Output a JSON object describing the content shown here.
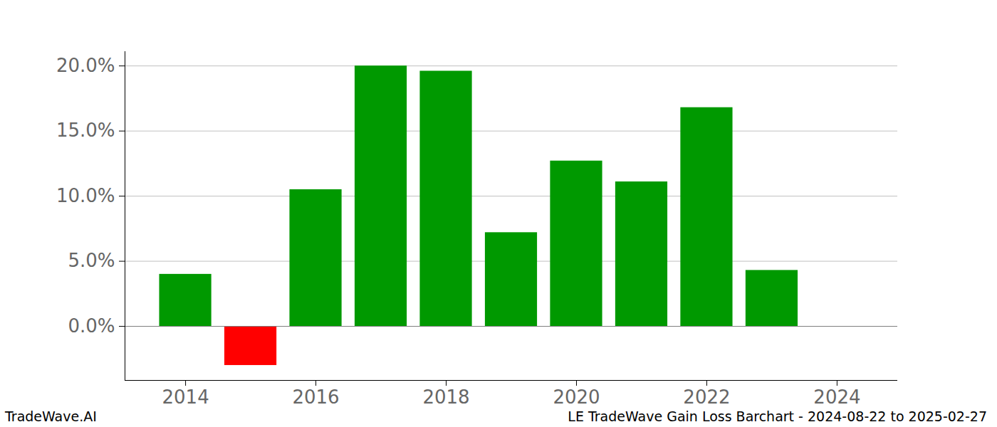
{
  "chart_data": {
    "type": "bar",
    "title": "LE TradeWave Gain Loss Barchart - 2024-08-22 to 2025-02-27",
    "caption": "TradeWave.AI",
    "x": [
      2014,
      2015,
      2016,
      2017,
      2018,
      2019,
      2020,
      2021,
      2022,
      2023
    ],
    "values": [
      4.0,
      -3.0,
      10.5,
      20.0,
      19.6,
      7.2,
      12.7,
      11.1,
      16.8,
      4.3
    ],
    "colors": [
      "#009900",
      "#ff0000",
      "#009900",
      "#009900",
      "#009900",
      "#009900",
      "#009900",
      "#009900",
      "#009900",
      "#009900"
    ],
    "xlim": [
      2013.07,
      2024.93
    ],
    "xticks": [
      2014,
      2016,
      2018,
      2020,
      2022,
      2024
    ],
    "ylim": [
      -4.15,
      21.1
    ],
    "yticks": [
      {
        "value": 0,
        "label": "0.0%"
      },
      {
        "value": 5,
        "label": "5.0%"
      },
      {
        "value": 10,
        "label": "10.0%"
      },
      {
        "value": 15,
        "label": "15.0%"
      },
      {
        "value": 20,
        "label": "20.0%"
      }
    ],
    "grid": true
  }
}
